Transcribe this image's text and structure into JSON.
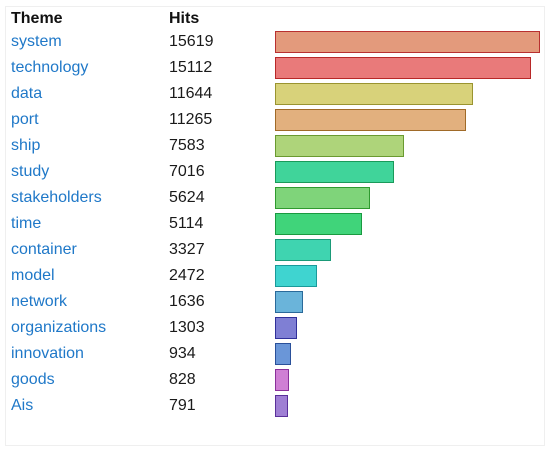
{
  "header": {
    "theme_label": "Theme",
    "hits_label": "Hits"
  },
  "chart_data": {
    "type": "bar",
    "orientation": "horizontal",
    "xlabel": "",
    "ylabel": "",
    "max": 15619,
    "categories": [
      "system",
      "technology",
      "data",
      "port",
      "ship",
      "study",
      "stakeholders",
      "time",
      "container",
      "model",
      "network",
      "organizations",
      "innovation",
      "goods",
      "Ais"
    ],
    "values": [
      15619,
      15112,
      11644,
      11265,
      7583,
      7016,
      5624,
      5114,
      3327,
      2472,
      1636,
      1303,
      934,
      828,
      791
    ]
  },
  "rows": [
    {
      "theme": "system",
      "hits": "15619",
      "value": 15619,
      "fill": "#e39a7c",
      "stroke": "#b83030"
    },
    {
      "theme": "technology",
      "hits": "15112",
      "value": 15112,
      "fill": "#e97a7a",
      "stroke": "#b82828"
    },
    {
      "theme": "data",
      "hits": "11644",
      "value": 11644,
      "fill": "#d8d27a",
      "stroke": "#9a9430"
    },
    {
      "theme": "port",
      "hits": "11265",
      "value": 11265,
      "fill": "#e2b07e",
      "stroke": "#a06a28"
    },
    {
      "theme": "ship",
      "hits": "7583",
      "value": 7583,
      "fill": "#aed47a",
      "stroke": "#6a9a30"
    },
    {
      "theme": "study",
      "hits": "7016",
      "value": 7016,
      "fill": "#40d49a",
      "stroke": "#1a9a5a"
    },
    {
      "theme": "stakeholders",
      "hits": "5624",
      "value": 5624,
      "fill": "#7fd47a",
      "stroke": "#2f9a2f"
    },
    {
      "theme": "time",
      "hits": "5114",
      "value": 5114,
      "fill": "#40d47a",
      "stroke": "#1a9a40"
    },
    {
      "theme": "container",
      "hits": "3327",
      "value": 3327,
      "fill": "#3fd4b0",
      "stroke": "#1a9a78"
    },
    {
      "theme": "model",
      "hits": "2472",
      "value": 2472,
      "fill": "#3fd4d0",
      "stroke": "#1a9a9a"
    },
    {
      "theme": "network",
      "hits": "1636",
      "value": 1636,
      "fill": "#6ab4da",
      "stroke": "#2a6a9a"
    },
    {
      "theme": "organizations",
      "hits": "1303",
      "value": 1303,
      "fill": "#7f7fd4",
      "stroke": "#30309a"
    },
    {
      "theme": "innovation",
      "hits": "934",
      "value": 934,
      "fill": "#6a96d8",
      "stroke": "#2a509a"
    },
    {
      "theme": "goods",
      "hits": "828",
      "value": 828,
      "fill": "#cf7fd4",
      "stroke": "#8a309a"
    },
    {
      "theme": "Ais",
      "hits": "791",
      "value": 791,
      "fill": "#9f7fd4",
      "stroke": "#5a309a"
    }
  ]
}
